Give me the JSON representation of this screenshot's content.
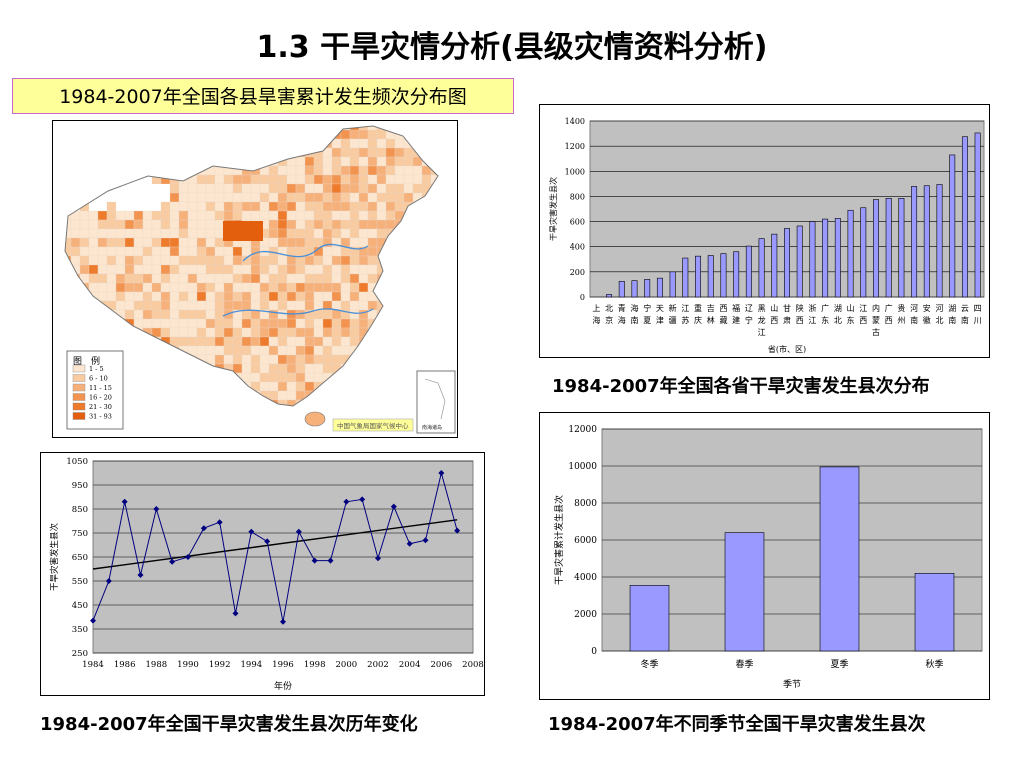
{
  "page": {
    "title": "1.3 干旱灾情分析(县级灾情资料分析)",
    "map_caption": "1984-2007年全国各县旱害累计发生频次分布图",
    "map_legend_title": "图　例",
    "map_legend": [
      {
        "label": "1 - 5",
        "color": "#fce6cf"
      },
      {
        "label": "6 - 10",
        "color": "#f9cba0"
      },
      {
        "label": "11 - 15",
        "color": "#f6b07a"
      },
      {
        "label": "16 - 20",
        "color": "#f29450"
      },
      {
        "label": "21 - 30",
        "color": "#ee7a2c"
      },
      {
        "label": "31 - 93",
        "color": "#e35f0e"
      }
    ],
    "map_source": "中国气象局国家气候中心",
    "map_inset_label": "南海诸岛",
    "caption_province": "1984-2007年全国各省干旱灾害发生县次分布",
    "caption_yearly": "1984-2007年全国干旱灾害发生县次历年变化",
    "caption_season": "1984-2007年不同季节全国干旱灾害发生县次"
  },
  "colors": {
    "bar_fill": "#9999ff",
    "plot_bg": "#c0c0c0",
    "line": "#000080",
    "trend": "#000000"
  },
  "chart_data": [
    {
      "id": "province",
      "type": "bar",
      "title": "",
      "xlabel": "省(市、区)",
      "ylabel": "干旱灾害发生县次",
      "ylim": [
        0,
        1400
      ],
      "yticks": [
        0,
        200,
        400,
        600,
        800,
        1000,
        1200,
        1400
      ],
      "grid": true,
      "categories": [
        "上海",
        "北京",
        "青海",
        "海南",
        "宁夏",
        "天津",
        "新疆",
        "江苏",
        "重庆",
        "吉林",
        "西藏",
        "福建",
        "辽宁",
        "黑龙江",
        "山西",
        "甘肃",
        "陕西",
        "浙江",
        "广东",
        "湖北",
        "山东",
        "江西",
        "内蒙古",
        "广西",
        "贵州",
        "河南",
        "安徽",
        "河北",
        "湖南",
        "云南",
        "四川"
      ],
      "values": [
        0,
        20,
        125,
        130,
        140,
        150,
        200,
        310,
        325,
        330,
        345,
        360,
        405,
        465,
        500,
        545,
        565,
        600,
        620,
        625,
        690,
        710,
        775,
        785,
        785,
        880,
        885,
        895,
        1130,
        1275,
        1305
      ]
    },
    {
      "id": "yearly",
      "type": "line",
      "title": "",
      "xlabel": "年份",
      "ylabel": "干旱灾害发生县次",
      "xlim": [
        1984,
        2008
      ],
      "ylim": [
        250,
        1050
      ],
      "xticks": [
        1984,
        1986,
        1988,
        1990,
        1992,
        1994,
        1996,
        1998,
        2000,
        2002,
        2004,
        2006,
        2008
      ],
      "yticks": [
        250,
        350,
        450,
        550,
        650,
        750,
        850,
        950,
        1050
      ],
      "grid": true,
      "x": [
        1984,
        1985,
        1986,
        1987,
        1988,
        1989,
        1990,
        1991,
        1992,
        1993,
        1994,
        1995,
        1996,
        1997,
        1998,
        1999,
        2000,
        2001,
        2002,
        2003,
        2004,
        2005,
        2006,
        2007
      ],
      "values": [
        385,
        550,
        880,
        575,
        850,
        630,
        650,
        770,
        795,
        415,
        755,
        715,
        380,
        755,
        635,
        635,
        880,
        890,
        645,
        860,
        705,
        720,
        1000,
        760
      ],
      "trend": [
        600,
        805
      ]
    },
    {
      "id": "season",
      "type": "bar",
      "title": "",
      "xlabel": "季节",
      "ylabel": "干旱灾害累计发生县次",
      "ylim": [
        0,
        12000
      ],
      "yticks": [
        0,
        2000,
        4000,
        6000,
        8000,
        10000,
        12000
      ],
      "grid": true,
      "categories": [
        "冬季",
        "春季",
        "夏季",
        "秋季"
      ],
      "values": [
        3550,
        6400,
        9950,
        4200
      ]
    }
  ]
}
